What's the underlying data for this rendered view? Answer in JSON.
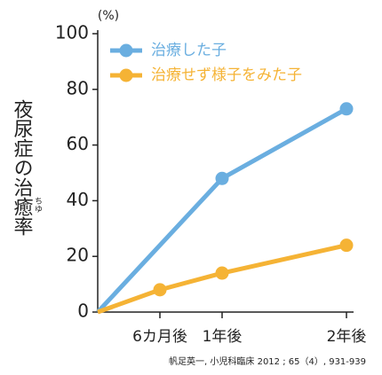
{
  "chart_data": {
    "type": "line",
    "y_label": "夜尿症の治癒率",
    "y_label_ruby": "ちゆ",
    "y_unit": "(%)",
    "source": "帆足英一, 小児科臨床 2012 ; 65（4）, 931-939",
    "xlim": [
      0,
      24
    ],
    "xticks": [
      {
        "value": 6,
        "label": "6カ月後"
      },
      {
        "value": 12,
        "label": "1年後"
      },
      {
        "value": 24,
        "label": "2年後"
      }
    ],
    "ylim": [
      0,
      100
    ],
    "yticks": [
      0,
      20,
      40,
      60,
      80,
      100
    ],
    "legend": "top-left",
    "series": [
      {
        "name": "治療した子",
        "color": "#6aaee0",
        "x": [
          0,
          12,
          24
        ],
        "values": [
          0,
          48,
          73
        ]
      },
      {
        "name": "治療せず様子をみた子",
        "color": "#f5b335",
        "x": [
          0,
          6,
          12,
          24
        ],
        "values": [
          0,
          8,
          14,
          24
        ]
      }
    ]
  }
}
